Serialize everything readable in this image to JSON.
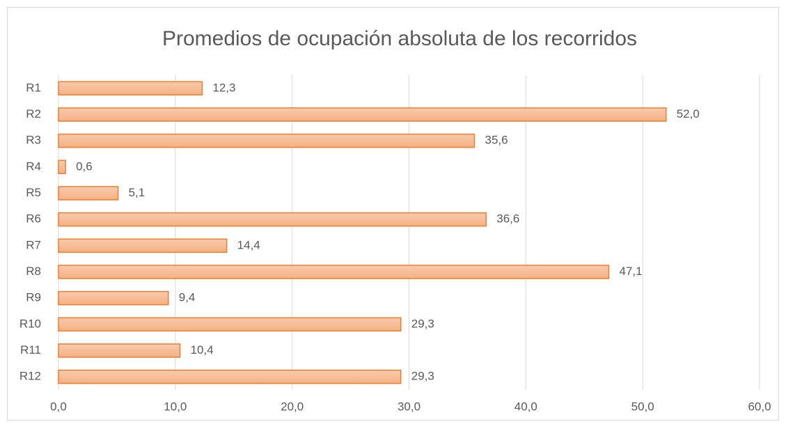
{
  "chart_data": {
    "type": "bar",
    "orientation": "horizontal",
    "title": "Promedios de ocupación absoluta de los recorridos",
    "categories": [
      "R1",
      "R2",
      "R3",
      "R4",
      "R5",
      "R6",
      "R7",
      "R8",
      "R9",
      "R10",
      "R11",
      "R12"
    ],
    "values": [
      12.3,
      52.0,
      35.6,
      0.6,
      5.1,
      36.6,
      14.4,
      47.1,
      9.4,
      29.3,
      10.4,
      29.3
    ],
    "value_labels": [
      "12,3",
      "52,0",
      "35,6",
      "0,6",
      "5,1",
      "36,6",
      "14,4",
      "47,1",
      "9,4",
      "29,3",
      "10,4",
      "29,3"
    ],
    "color": "#f4b183",
    "edge_color": "#ed7d31",
    "xlim": [
      0,
      60
    ],
    "xticks": [
      {
        "value": 0,
        "label": "0,0"
      },
      {
        "value": 10,
        "label": "10,0"
      },
      {
        "value": 20,
        "label": "20,0"
      },
      {
        "value": 30,
        "label": "30,0"
      },
      {
        "value": 40,
        "label": "40,0"
      },
      {
        "value": 50,
        "label": "50,0"
      },
      {
        "value": 60,
        "label": "60,0"
      }
    ],
    "grid": true
  }
}
